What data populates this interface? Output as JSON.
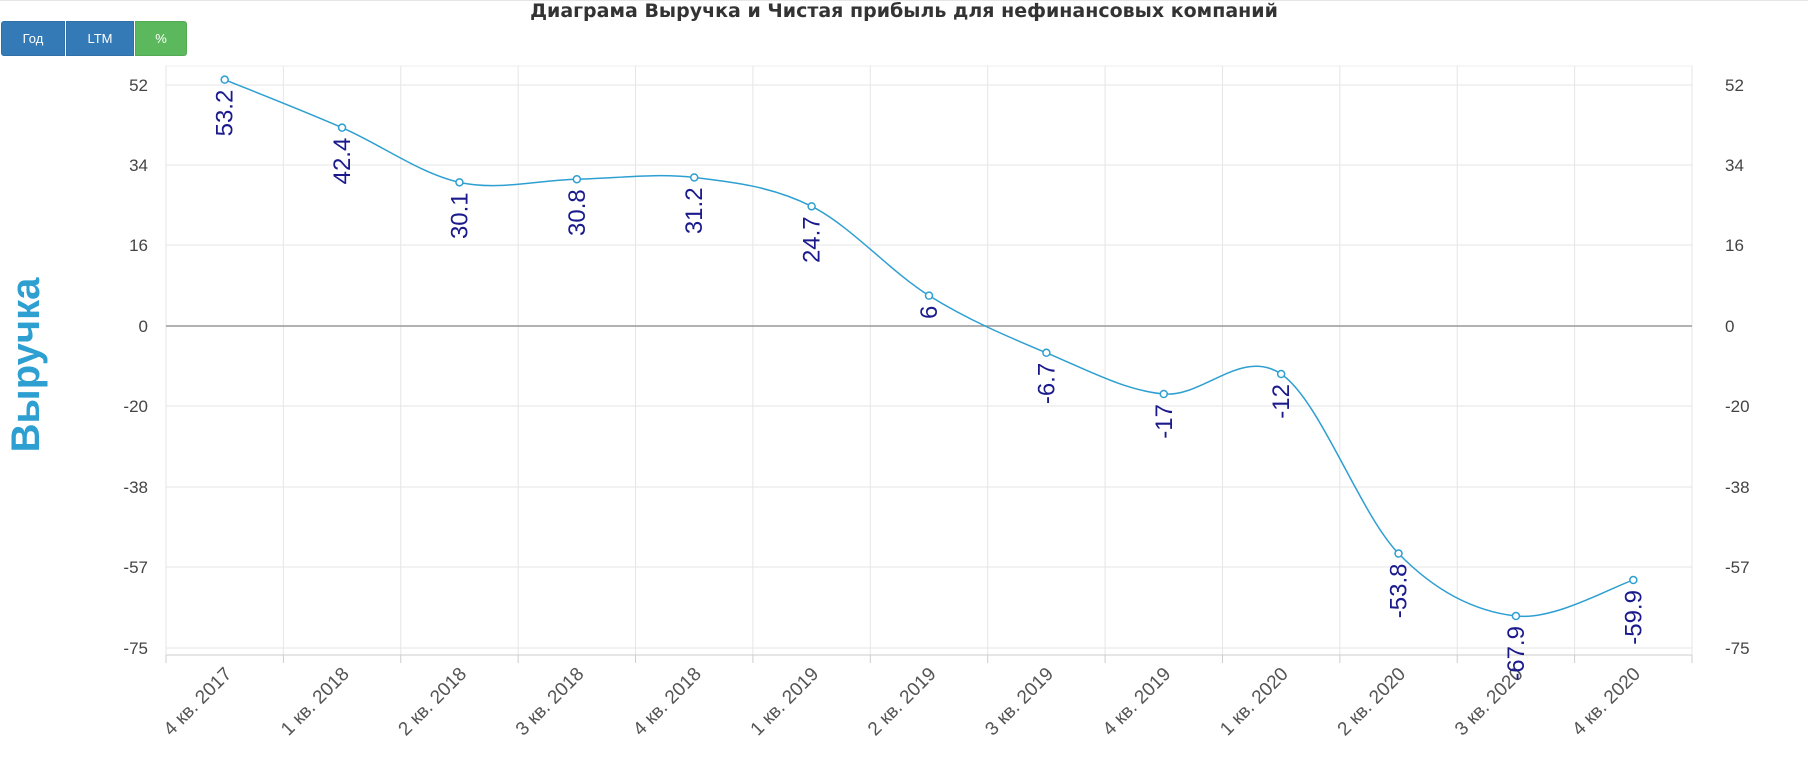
{
  "title": "Диаграма Выручка и Чистая прибыль для нефинансовых компаний",
  "buttons": {
    "year": "Год",
    "ltm": "LTM",
    "percent": "%"
  },
  "colors": {
    "line": "#2e9fd1",
    "label": "#1a1a8c",
    "axis_title": "#2e9fd1",
    "grid": "#e6e6e6",
    "zero_line": "#999999",
    "button_blue": "#337ab7",
    "button_green": "#5cb85c"
  },
  "chart_data": {
    "type": "line",
    "title": "Диаграма Выручка и Чистая прибыль для нефинансовых компаний",
    "ylabel": "Выручка",
    "xlabel": "",
    "categories": [
      "4 кв. 2017",
      "1 кв. 2018",
      "2 кв. 2018",
      "3 кв. 2018",
      "4 кв. 2018",
      "1 кв. 2019",
      "2 кв. 2019",
      "3 кв. 2019",
      "4 кв. 2019",
      "1 кв. 2020",
      "2 кв. 2020",
      "3 кв. 2020",
      "4 кв. 2020"
    ],
    "series": [
      {
        "values": [
          53.2,
          42.4,
          30.1,
          30.8,
          31.2,
          24.7,
          6,
          -6.7,
          -17,
          -12,
          -53.8,
          -67.9,
          -59.9
        ]
      }
    ],
    "data_labels": [
      "53.2",
      "42.4",
      "30.1",
      "30.8",
      "31.2",
      "24.7",
      "6",
      "-6.7",
      "-17",
      "-12",
      "-53.8",
      "-67.9",
      "-59.9"
    ],
    "y_ticks": [
      "52",
      "34",
      "16",
      "0",
      "-20",
      "-38",
      "-57",
      "-75"
    ],
    "y2_ticks": [
      "52",
      "34",
      "16",
      "0",
      "-20",
      "-38",
      "-57",
      "-75"
    ],
    "ylim": [
      -75,
      55
    ],
    "grid": true,
    "legend": "none"
  }
}
